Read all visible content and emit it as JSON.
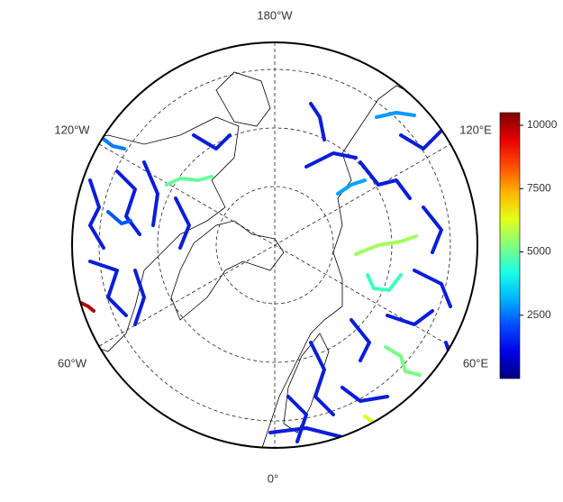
{
  "map": {
    "lon_labels": [
      "180°W",
      "120°W",
      "120°E",
      "60°W",
      "60°E",
      "0°"
    ],
    "colorbar": {
      "clim": [
        0,
        10500
      ],
      "ticks": [
        2500,
        5000,
        7500,
        10000
      ]
    },
    "rivers": [
      {
        "value": 10000
      },
      {
        "value": 5600
      },
      {
        "value": 4600
      },
      {
        "value": 2900
      },
      {
        "value": 5200
      },
      {
        "value": 5000
      },
      {
        "value": 2600
      },
      {
        "value": 6200
      },
      {
        "value": 3000
      },
      {
        "value": 2200
      }
    ]
  }
}
